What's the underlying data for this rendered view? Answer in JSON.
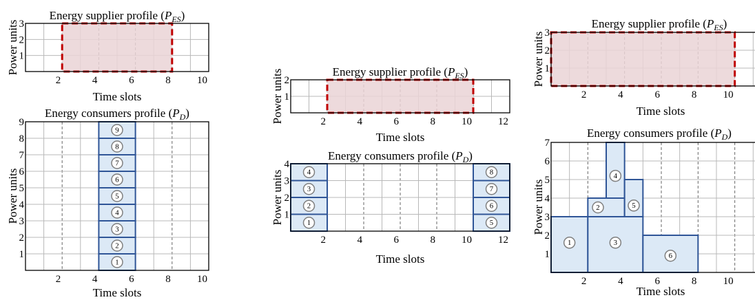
{
  "charts": [
    {
      "title": "Energy supplier profile (",
      "sym": "P",
      "sub": "ES",
      "ylabel": "Power units",
      "xlabel": "Time slots",
      "xticks": [
        "2",
        "4",
        "6",
        "8",
        "10"
      ],
      "yticks": [
        "1",
        "2",
        "3"
      ],
      "es_from": 2,
      "es_to": 8,
      "es_level": 3
    },
    {
      "title": "Energy consumers profile (",
      "sym": "P",
      "sub": "D",
      "ylabel": "Power units",
      "xlabel": "Time slots",
      "xticks": [
        "2",
        "4",
        "6",
        "8",
        "10"
      ],
      "yticks": [
        "1",
        "2",
        "3",
        "4",
        "5",
        "6",
        "7",
        "8",
        "9"
      ],
      "blocks": [
        {
          "id": "1",
          "from": 4,
          "to": 6,
          "y0": 0,
          "y1": 1
        },
        {
          "id": "2",
          "from": 4,
          "to": 6,
          "y0": 1,
          "y1": 2
        },
        {
          "id": "3",
          "from": 4,
          "to": 6,
          "y0": 2,
          "y1": 3
        },
        {
          "id": "4",
          "from": 4,
          "to": 6,
          "y0": 3,
          "y1": 4
        },
        {
          "id": "5",
          "from": 4,
          "to": 6,
          "y0": 4,
          "y1": 5
        },
        {
          "id": "6",
          "from": 4,
          "to": 6,
          "y0": 5,
          "y1": 6
        },
        {
          "id": "7",
          "from": 4,
          "to": 6,
          "y0": 6,
          "y1": 7
        },
        {
          "id": "8",
          "from": 4,
          "to": 6,
          "y0": 7,
          "y1": 8
        },
        {
          "id": "9",
          "from": 4,
          "to": 6,
          "y0": 8,
          "y1": 9
        }
      ]
    },
    {
      "title": "Energy supplier profile (",
      "sym": "P",
      "sub": "ES",
      "ylabel": "Power units",
      "xlabel": "Time slots",
      "xticks": [
        "2",
        "4",
        "6",
        "8",
        "10",
        "12"
      ],
      "yticks": [
        "1",
        "2"
      ],
      "es_from": 2,
      "es_to": 10,
      "es_level": 2
    },
    {
      "title": "Energy consumers profile (",
      "sym": "P",
      "sub": "D",
      "ylabel": "Power units",
      "xlabel": "Time slots",
      "xticks": [
        "2",
        "4",
        "6",
        "8",
        "10",
        "12"
      ],
      "yticks": [
        "1",
        "2",
        "3",
        "4"
      ],
      "blocks": [
        {
          "id": "1",
          "from": 0,
          "to": 2,
          "y0": 0,
          "y1": 1
        },
        {
          "id": "2",
          "from": 0,
          "to": 2,
          "y0": 1,
          "y1": 2
        },
        {
          "id": "3",
          "from": 0,
          "to": 2,
          "y0": 2,
          "y1": 3
        },
        {
          "id": "4",
          "from": 0,
          "to": 2,
          "y0": 3,
          "y1": 4
        },
        {
          "id": "5",
          "from": 10,
          "to": 12,
          "y0": 0,
          "y1": 1
        },
        {
          "id": "6",
          "from": 10,
          "to": 12,
          "y0": 1,
          "y1": 2
        },
        {
          "id": "7",
          "from": 10,
          "to": 12,
          "y0": 2,
          "y1": 3
        },
        {
          "id": "8",
          "from": 10,
          "to": 12,
          "y0": 3,
          "y1": 4
        }
      ]
    },
    {
      "title": "Energy supplier profile (",
      "sym": "P",
      "sub": "ES",
      "ylabel": "Power units",
      "xlabel": "Time slots",
      "xticks": [
        "2",
        "4",
        "6",
        "8",
        "10"
      ],
      "yticks": [
        "1",
        "2",
        "3"
      ],
      "es_from": 0,
      "es_to": 10,
      "es_level": 3
    },
    {
      "title": "Energy consumers profile (",
      "sym": "P",
      "sub": "D",
      "ylabel": "Power units",
      "xlabel": "Time slots",
      "xticks": [
        "2",
        "4",
        "6",
        "8",
        "10"
      ],
      "yticks": [
        "1",
        "2",
        "3",
        "4",
        "5",
        "6",
        "7"
      ],
      "blocks": [
        {
          "id": "1",
          "from": 0,
          "to": 2,
          "y0": 0,
          "y1": 3
        },
        {
          "id": "2",
          "from": 2,
          "to": 4,
          "y0": 3,
          "y1": 4
        },
        {
          "id": "3",
          "from": 2,
          "to": 5,
          "y0": 0,
          "y1": 3
        },
        {
          "id": "4",
          "from": 3,
          "to": 4,
          "y0": 4,
          "y1": 7
        },
        {
          "id": "5",
          "from": 4,
          "to": 5,
          "y0": 3,
          "y1": 5
        },
        {
          "id": "6",
          "from": 5,
          "to": 8,
          "y0": 0,
          "y1": 2
        }
      ]
    }
  ]
}
